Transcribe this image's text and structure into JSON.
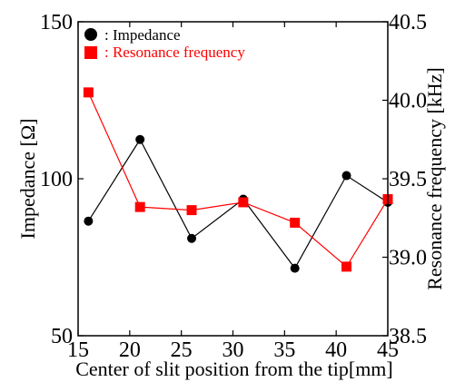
{
  "chart_data": {
    "type": "line",
    "title": "",
    "xlabel": "Center of slit position from the tip[mm]",
    "ylabel_left": "Impedance [Ω]",
    "ylabel_right": "Resonance frequency [kHz]",
    "xlim": [
      15,
      45
    ],
    "ylim_left": [
      50,
      150
    ],
    "ylim_right": [
      38.5,
      40.5
    ],
    "x_ticks": [
      "15",
      "20",
      "25",
      "30",
      "35",
      "40",
      "45"
    ],
    "y_ticks_left": [
      "50",
      "100",
      "150"
    ],
    "y_ticks_right": [
      "38.5",
      "39.0",
      "39.5",
      "40.0",
      "40.5"
    ],
    "grid": false,
    "legend_position": "top-left",
    "series": [
      {
        "name": ": Impedance",
        "axis": "left",
        "marker": "circle",
        "color": "#000000",
        "x": [
          16,
          21,
          26,
          31,
          36,
          41,
          45
        ],
        "y": [
          86.5,
          112.5,
          81,
          93.5,
          71.5,
          101,
          92.5
        ]
      },
      {
        "name": ": Resonance frequency",
        "axis": "right",
        "marker": "square",
        "color": "#ff0000",
        "x": [
          16,
          21,
          26,
          31,
          36,
          41,
          45
        ],
        "y": [
          40.05,
          39.32,
          39.3,
          39.35,
          39.22,
          38.94,
          39.37
        ]
      }
    ]
  }
}
